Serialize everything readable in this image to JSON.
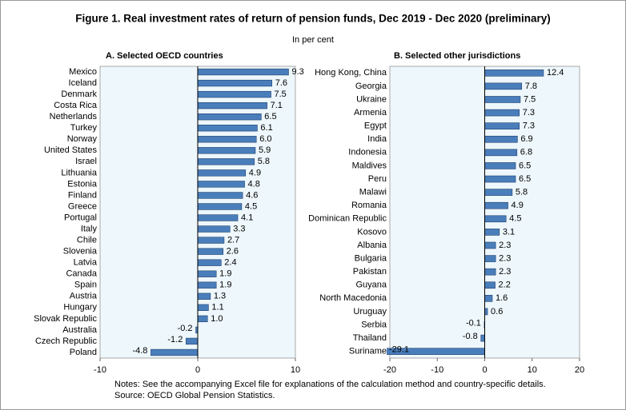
{
  "title": "Figure 1. Real investment rates of return of pension funds, Dec 2019 - Dec 2020 (preliminary)",
  "subtitle": "In per cent",
  "notes": [
    "Notes: See the accompanying Excel file for explanations of the calculation method and country-specific details.",
    "Source: OECD Global Pension Statistics."
  ],
  "chart_data": [
    {
      "type": "hbar",
      "title": "A. Selected OECD countries",
      "categories": [
        "Mexico",
        "Iceland",
        "Denmark",
        "Costa Rica",
        "Netherlands",
        "Turkey",
        "Norway",
        "United States",
        "Israel",
        "Lithuania",
        "Estonia",
        "Finland",
        "Greece",
        "Portugal",
        "Italy",
        "Chile",
        "Slovenia",
        "Latvia",
        "Canada",
        "Spain",
        "Austria",
        "Hungary",
        "Slovak Republic",
        "Australia",
        "Czech Republic",
        "Poland"
      ],
      "values": [
        9.3,
        7.6,
        7.5,
        7.1,
        6.5,
        6.1,
        6.0,
        5.9,
        5.8,
        4.9,
        4.8,
        4.6,
        4.5,
        4.1,
        3.3,
        2.7,
        2.6,
        2.4,
        1.9,
        1.9,
        1.3,
        1.1,
        1.0,
        -0.2,
        -1.2,
        -4.8
      ],
      "value_labels": [
        "9.3",
        "7.6",
        "7.5",
        "7.1",
        "6.5",
        "6.1",
        "6.0",
        "5.9",
        "5.8",
        "4.9",
        "4.8",
        "4.6",
        "4.5",
        "4.1",
        "3.3",
        "2.7",
        "2.6",
        "2.4",
        "1.9",
        "1.9",
        "1.3",
        "1.1",
        "1.0",
        "-0.2",
        "-1.2",
        "-4.8"
      ],
      "color": "#4a7ebb",
      "xlim": [
        -10,
        10
      ],
      "xticks": [
        -10,
        0,
        10
      ],
      "grid": false
    },
    {
      "type": "hbar",
      "title": "B. Selected other jurisdictions",
      "categories": [
        "Hong Kong, China",
        "Georgia",
        "Ukraine",
        "Armenia",
        "Egypt",
        "India",
        "Indonesia",
        "Maldives",
        "Peru",
        "Malawi",
        "Romania",
        "Dominican Republic",
        "Kosovo",
        "Albania",
        "Bulgaria",
        "Pakistan",
        "Guyana",
        "North Macedonia",
        "Uruguay",
        "Serbia",
        "Thailand",
        "Suriname"
      ],
      "values": [
        12.4,
        7.8,
        7.5,
        7.3,
        7.3,
        6.9,
        6.8,
        6.5,
        6.5,
        5.8,
        4.9,
        4.5,
        3.1,
        2.3,
        2.3,
        2.3,
        2.2,
        1.6,
        0.6,
        -0.1,
        -0.8,
        -29.1
      ],
      "value_labels": [
        "12.4",
        "7.8",
        "7.5",
        "7.3",
        "7.3",
        "6.9",
        "6.8",
        "6.5",
        "6.5",
        "5.8",
        "4.9",
        "4.5",
        "3.1",
        "2.3",
        "2.3",
        "2.3",
        "2.2",
        "1.6",
        "0.6",
        "-0.1",
        "-0.8",
        "-29.1"
      ],
      "color": "#4a7ebb",
      "xlim": [
        -20,
        20
      ],
      "xticks": [
        -20,
        -10,
        0,
        10,
        20
      ],
      "grid": false
    }
  ]
}
